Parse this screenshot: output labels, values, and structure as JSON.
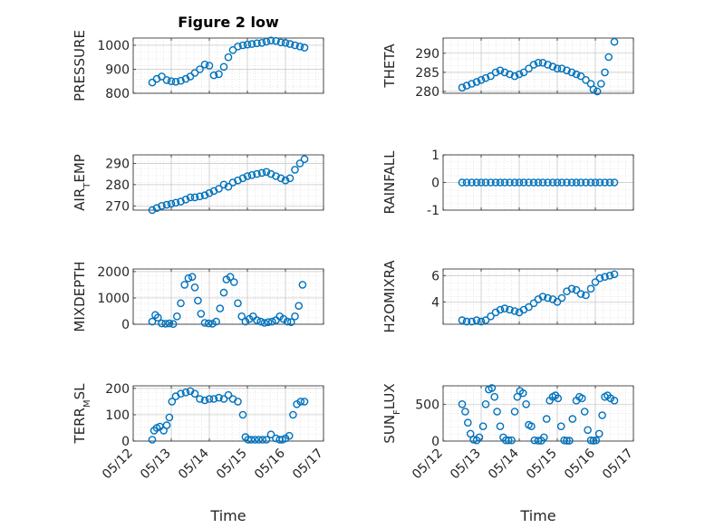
{
  "chart_data": {
    "type": "scatter",
    "title": "Figure 2 low",
    "xlabel": "Time",
    "x_ticks": [
      "05/12",
      "05/13",
      "05/14",
      "05/15",
      "05/16",
      "05/17"
    ],
    "marker_color": "#0072BD",
    "grid": true,
    "panels": [
      {
        "ylabel": "PRESSURE",
        "ylabel_sub": "",
        "ylabel_post": "",
        "ylim": [
          800,
          1030
        ],
        "yticks": [
          "800",
          "900",
          "1000"
        ],
        "x": [
          0.5,
          0.62,
          0.75,
          0.88,
          1.0,
          1.12,
          1.25,
          1.38,
          1.5,
          1.62,
          1.75,
          1.88,
          2.0,
          2.12,
          2.25,
          2.38,
          2.5,
          2.62,
          2.75,
          2.88,
          3.0,
          3.12,
          3.25,
          3.38,
          3.5,
          3.62,
          3.75,
          3.88,
          4.0,
          4.12,
          4.25,
          4.38,
          4.5
        ],
        "y": [
          845,
          860,
          870,
          855,
          850,
          848,
          852,
          860,
          870,
          885,
          900,
          920,
          915,
          875,
          880,
          910,
          950,
          980,
          995,
          1000,
          1003,
          1005,
          1008,
          1010,
          1015,
          1020,
          1018,
          1012,
          1010,
          1005,
          1000,
          995,
          990
        ]
      },
      {
        "ylabel": "THETA",
        "ylabel_sub": "",
        "ylabel_post": "",
        "ylim": [
          279.5,
          294
        ],
        "yticks": [
          "280",
          "285",
          "290"
        ],
        "x": [
          0.5,
          0.62,
          0.75,
          0.88,
          1.0,
          1.12,
          1.25,
          1.38,
          1.5,
          1.62,
          1.75,
          1.88,
          2.0,
          2.12,
          2.25,
          2.38,
          2.5,
          2.62,
          2.75,
          2.88,
          3.0,
          3.12,
          3.25,
          3.38,
          3.5,
          3.62,
          3.75,
          3.88,
          3.95,
          4.05,
          4.15,
          4.25,
          4.35,
          4.5
        ],
        "y": [
          281,
          281.5,
          282,
          282.5,
          283,
          283.5,
          284,
          285,
          285.5,
          285,
          284.5,
          284,
          284.5,
          285,
          286,
          287,
          287.5,
          287.5,
          287,
          286.5,
          286,
          286,
          285.5,
          285,
          284.5,
          284,
          283,
          282,
          280.5,
          280,
          282,
          285,
          289,
          293
        ]
      },
      {
        "ylabel": "AIR",
        "ylabel_sub": "T",
        "ylabel_post": "EMP",
        "ylim": [
          268,
          294
        ],
        "yticks": [
          "270",
          "280",
          "290"
        ],
        "x": [
          0.5,
          0.62,
          0.75,
          0.88,
          1.0,
          1.12,
          1.25,
          1.38,
          1.5,
          1.62,
          1.75,
          1.88,
          2.0,
          2.12,
          2.25,
          2.38,
          2.5,
          2.62,
          2.75,
          2.88,
          3.0,
          3.12,
          3.25,
          3.38,
          3.5,
          3.62,
          3.75,
          3.88,
          4.0,
          4.12,
          4.25,
          4.38,
          4.5
        ],
        "y": [
          268,
          269,
          270,
          270.5,
          271,
          271.5,
          272,
          273,
          274,
          274,
          274.5,
          275,
          276,
          277,
          278,
          280,
          279,
          281,
          282,
          283,
          284,
          284.5,
          285,
          285.5,
          286,
          285,
          284,
          283,
          282,
          283,
          287,
          290,
          292
        ]
      },
      {
        "ylabel": "RAINFALL",
        "ylabel_sub": "",
        "ylabel_post": "",
        "ylim": [
          -1,
          1
        ],
        "yticks": [
          "-1",
          "0",
          "1"
        ],
        "x": [
          0.5,
          0.62,
          0.75,
          0.88,
          1.0,
          1.12,
          1.25,
          1.38,
          1.5,
          1.62,
          1.75,
          1.88,
          2.0,
          2.12,
          2.25,
          2.38,
          2.5,
          2.62,
          2.75,
          2.88,
          3.0,
          3.12,
          3.25,
          3.38,
          3.5,
          3.62,
          3.75,
          3.88,
          4.0,
          4.12,
          4.25,
          4.38,
          4.5
        ],
        "y": [
          0,
          0,
          0,
          0,
          0,
          0,
          0,
          0,
          0,
          0,
          0,
          0,
          0,
          0,
          0,
          0,
          0,
          0,
          0,
          0,
          0,
          0,
          0,
          0,
          0,
          0,
          0,
          0,
          0,
          0,
          0,
          0,
          0
        ]
      },
      {
        "ylabel": "MIXDEPTH",
        "ylabel_sub": "",
        "ylabel_post": "",
        "ylim": [
          0,
          2100
        ],
        "yticks": [
          "0",
          "1000",
          "2000"
        ],
        "x": [
          0.5,
          0.58,
          0.65,
          0.75,
          0.85,
          0.95,
          1.05,
          1.15,
          1.25,
          1.35,
          1.45,
          1.55,
          1.62,
          1.7,
          1.78,
          1.88,
          1.98,
          2.08,
          2.18,
          2.28,
          2.38,
          2.45,
          2.55,
          2.65,
          2.75,
          2.85,
          2.95,
          3.05,
          3.15,
          3.25,
          3.35,
          3.45,
          3.55,
          3.65,
          3.75,
          3.85,
          3.95,
          4.05,
          4.15,
          4.25,
          4.35,
          4.45
        ],
        "y": [
          100,
          350,
          250,
          30,
          20,
          30,
          10,
          300,
          800,
          1500,
          1750,
          1800,
          1400,
          900,
          400,
          50,
          30,
          20,
          100,
          600,
          1200,
          1700,
          1800,
          1600,
          800,
          300,
          100,
          200,
          300,
          150,
          100,
          50,
          80,
          100,
          150,
          300,
          200,
          100,
          80,
          300,
          700,
          1500
        ]
      },
      {
        "ylabel": "H2OMIXRA",
        "ylabel_sub": "",
        "ylabel_post": "",
        "ylim": [
          2.3,
          6.5
        ],
        "yticks": [
          "4",
          "6"
        ],
        "x": [
          0.5,
          0.62,
          0.75,
          0.88,
          1.0,
          1.12,
          1.25,
          1.38,
          1.5,
          1.62,
          1.75,
          1.88,
          2.0,
          2.12,
          2.25,
          2.38,
          2.5,
          2.62,
          2.75,
          2.88,
          3.0,
          3.12,
          3.25,
          3.38,
          3.5,
          3.62,
          3.75,
          3.88,
          4.0,
          4.12,
          4.25,
          4.38,
          4.5
        ],
        "y": [
          2.6,
          2.5,
          2.5,
          2.6,
          2.5,
          2.6,
          2.9,
          3.2,
          3.4,
          3.5,
          3.4,
          3.3,
          3.2,
          3.4,
          3.6,
          3.9,
          4.2,
          4.4,
          4.3,
          4.2,
          4.0,
          4.3,
          4.8,
          5.0,
          4.9,
          4.6,
          4.5,
          5.0,
          5.5,
          5.8,
          5.9,
          6.0,
          6.1
        ]
      },
      {
        "ylabel": "TERR",
        "ylabel_sub": "M",
        "ylabel_post": "SL",
        "ylim": [
          0,
          210
        ],
        "yticks": [
          "0",
          "100",
          "200"
        ],
        "x": [
          0.5,
          0.55,
          0.62,
          0.7,
          0.8,
          0.88,
          0.95,
          1.02,
          1.12,
          1.25,
          1.38,
          1.5,
          1.62,
          1.75,
          1.88,
          2.0,
          2.12,
          2.25,
          2.38,
          2.5,
          2.62,
          2.75,
          2.88,
          2.95,
          3.02,
          3.1,
          3.2,
          3.3,
          3.4,
          3.5,
          3.62,
          3.75,
          3.85,
          3.92,
          4.0,
          4.1,
          4.2,
          4.3,
          4.4,
          4.5
        ],
        "y": [
          5,
          40,
          50,
          55,
          40,
          60,
          90,
          150,
          170,
          180,
          185,
          190,
          180,
          160,
          155,
          160,
          160,
          165,
          160,
          175,
          160,
          150,
          100,
          15,
          5,
          5,
          5,
          5,
          5,
          5,
          25,
          10,
          5,
          5,
          10,
          20,
          100,
          140,
          150,
          150
        ]
      },
      {
        "ylabel": "SUN",
        "ylabel_sub": "F",
        "ylabel_post": "LUX",
        "ylim": [
          0,
          750
        ],
        "yticks": [
          "0",
          "500"
        ],
        "x": [
          0.5,
          0.58,
          0.65,
          0.72,
          0.8,
          0.88,
          0.95,
          1.05,
          1.12,
          1.2,
          1.28,
          1.35,
          1.42,
          1.5,
          1.58,
          1.65,
          1.72,
          1.8,
          1.88,
          1.95,
          2.02,
          2.1,
          2.18,
          2.25,
          2.32,
          2.4,
          2.5,
          2.58,
          2.65,
          2.72,
          2.8,
          2.88,
          2.95,
          3.02,
          3.1,
          3.18,
          3.25,
          3.32,
          3.4,
          3.5,
          3.58,
          3.65,
          3.72,
          3.8,
          3.88,
          3.95,
          4.02,
          4.1,
          4.18,
          4.25,
          4.32,
          4.4,
          4.5
        ],
        "y": [
          500,
          400,
          250,
          100,
          20,
          10,
          50,
          200,
          500,
          700,
          720,
          600,
          400,
          200,
          50,
          10,
          10,
          10,
          400,
          600,
          680,
          650,
          500,
          220,
          200,
          10,
          5,
          5,
          50,
          300,
          550,
          600,
          620,
          580,
          200,
          10,
          5,
          5,
          300,
          550,
          600,
          580,
          400,
          150,
          10,
          5,
          10,
          100,
          350,
          600,
          620,
          580,
          550
        ]
      }
    ]
  }
}
